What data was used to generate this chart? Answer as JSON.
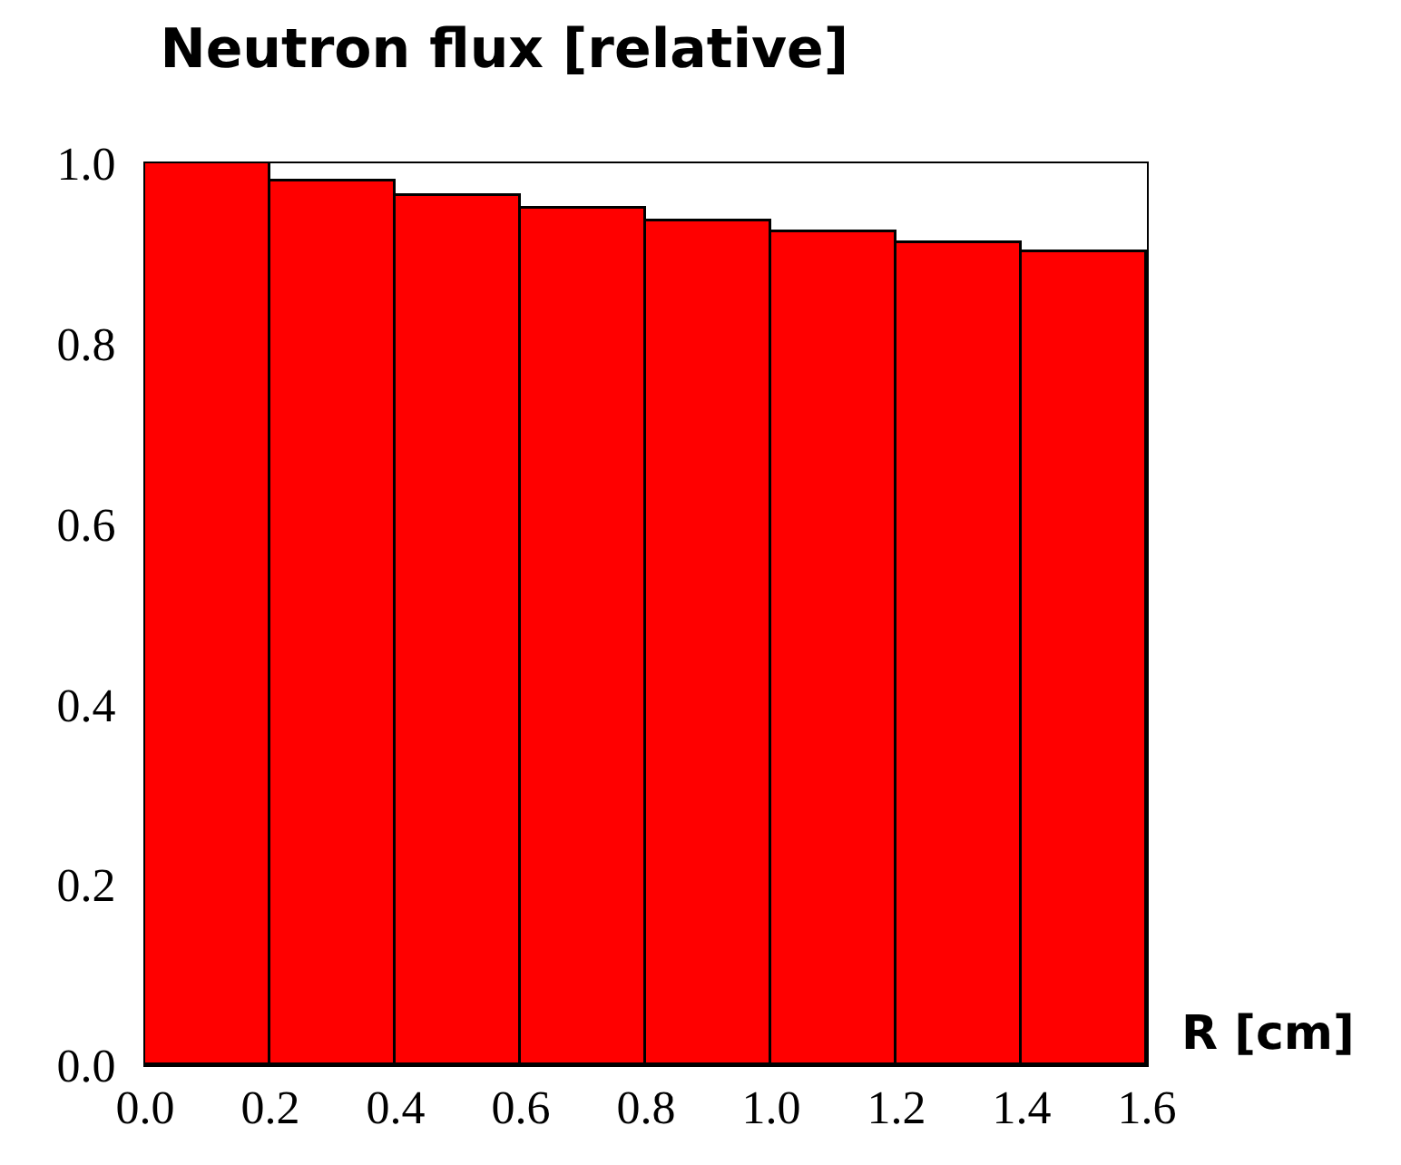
{
  "chart_data": {
    "type": "histogram",
    "title": "Neutron flux [relative]",
    "xlabel": "R [cm]",
    "bins": [
      0.0,
      0.2,
      0.4,
      0.6,
      0.8,
      1.0,
      1.2,
      1.4,
      1.6
    ],
    "values": [
      1.0,
      0.98,
      0.963,
      0.95,
      0.936,
      0.924,
      0.911,
      0.902
    ],
    "color": "#ff0000",
    "xlim": [
      0.0,
      1.6
    ],
    "ylim": [
      0.0,
      1.0
    ],
    "xticks": [
      {
        "value": 0.0,
        "label": "0.0"
      },
      0.2,
      0.4,
      0.6,
      0.8,
      {
        "value": 1.0,
        "label": "1.0"
      },
      1.2,
      1.4,
      1.6
    ],
    "yticks": [
      {
        "value": 0.0,
        "label": "0.0"
      },
      0.2,
      0.4,
      0.6,
      0.8,
      {
        "value": 1.0,
        "label": "1.0"
      }
    ]
  }
}
